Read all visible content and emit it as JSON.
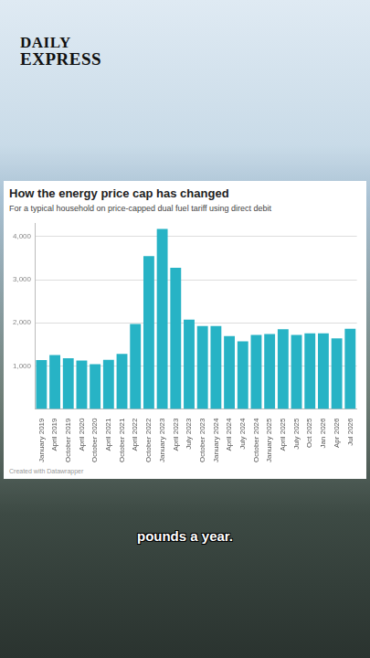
{
  "header": {
    "logo": [
      "DAILY",
      "EXPRESS"
    ]
  },
  "chart_data": {
    "type": "bar",
    "title": "How the energy price cap has changed",
    "subtitle": "For a typical household on price-capped dual fuel tariff using direct debit",
    "categories": [
      "January 2019",
      "April 2019",
      "October 2019",
      "April 2020",
      "October 2020",
      "April 2021",
      "October 2021",
      "April 2022",
      "October 2022",
      "January 2023",
      "April 2023",
      "July 2023",
      "October 2023",
      "January 2024",
      "April 2024",
      "July 2024",
      "October 2024",
      "January 2025",
      "April 2025",
      "July 2025",
      "Oct 2025",
      "Jan 2026",
      "Apr 2026",
      "Jul 2026"
    ],
    "values": [
      1137,
      1254,
      1179,
      1126,
      1042,
      1138,
      1277,
      1971,
      3549,
      4180,
      3280,
      2074,
      1923,
      1928,
      1690,
      1568,
      1717,
      1738,
      1849,
      1720,
      1755,
      1758,
      1641,
      1862
    ],
    "color": "#27b3c5",
    "ylim": [
      0,
      4300
    ],
    "yticks": [
      {
        "value": 1000,
        "label": "1,000"
      },
      {
        "value": 2000,
        "label": "2,000"
      },
      {
        "value": 3000,
        "label": "3,000"
      },
      {
        "value": 4000,
        "label": "4,000"
      }
    ],
    "grid": true
  },
  "credit": "Created with Datawrapper",
  "caption": "pounds a year."
}
